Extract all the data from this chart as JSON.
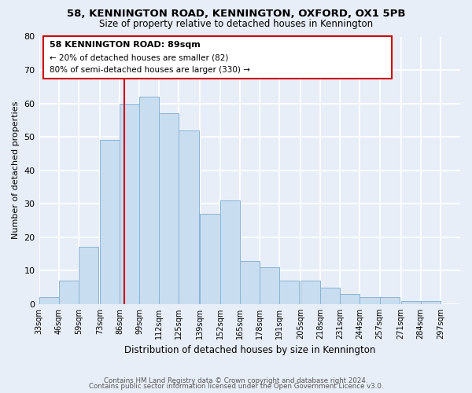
{
  "title": "58, KENNINGTON ROAD, KENNINGTON, OXFORD, OX1 5PB",
  "subtitle": "Size of property relative to detached houses in Kennington",
  "xlabel": "Distribution of detached houses by size in Kennington",
  "ylabel": "Number of detached properties",
  "bin_labels": [
    "33sqm",
    "46sqm",
    "59sqm",
    "73sqm",
    "86sqm",
    "99sqm",
    "112sqm",
    "125sqm",
    "139sqm",
    "152sqm",
    "165sqm",
    "178sqm",
    "191sqm",
    "205sqm",
    "218sqm",
    "231sqm",
    "244sqm",
    "257sqm",
    "271sqm",
    "284sqm",
    "297sqm"
  ],
  "bar_values": [
    2,
    7,
    17,
    49,
    60,
    62,
    57,
    52,
    27,
    31,
    13,
    11,
    7,
    7,
    5,
    3,
    2,
    2,
    1,
    1
  ],
  "bar_color": "#c8ddf0",
  "bar_edge_color": "#8ab4d4",
  "red_line_color": "#cc0000",
  "annotation_box_color": "#ffffff",
  "annotation_border_color": "#cc0000",
  "annotation_text_line1": "58 KENNINGTON ROAD: 89sqm",
  "annotation_text_line2": "← 20% of detached houses are smaller (82)",
  "annotation_text_line3": "80% of semi-detached houses are larger (330) →",
  "ylim": [
    0,
    80
  ],
  "yticks": [
    0,
    10,
    20,
    30,
    40,
    50,
    60,
    70,
    80
  ],
  "footer_line1": "Contains HM Land Registry data © Crown copyright and database right 2024.",
  "footer_line2": "Contains public sector information licensed under the Open Government Licence v3.0.",
  "bg_color": "#e8eef8",
  "plot_bg_color": "#e8eef8",
  "grid_color": "#ffffff",
  "bin_width": 13
}
